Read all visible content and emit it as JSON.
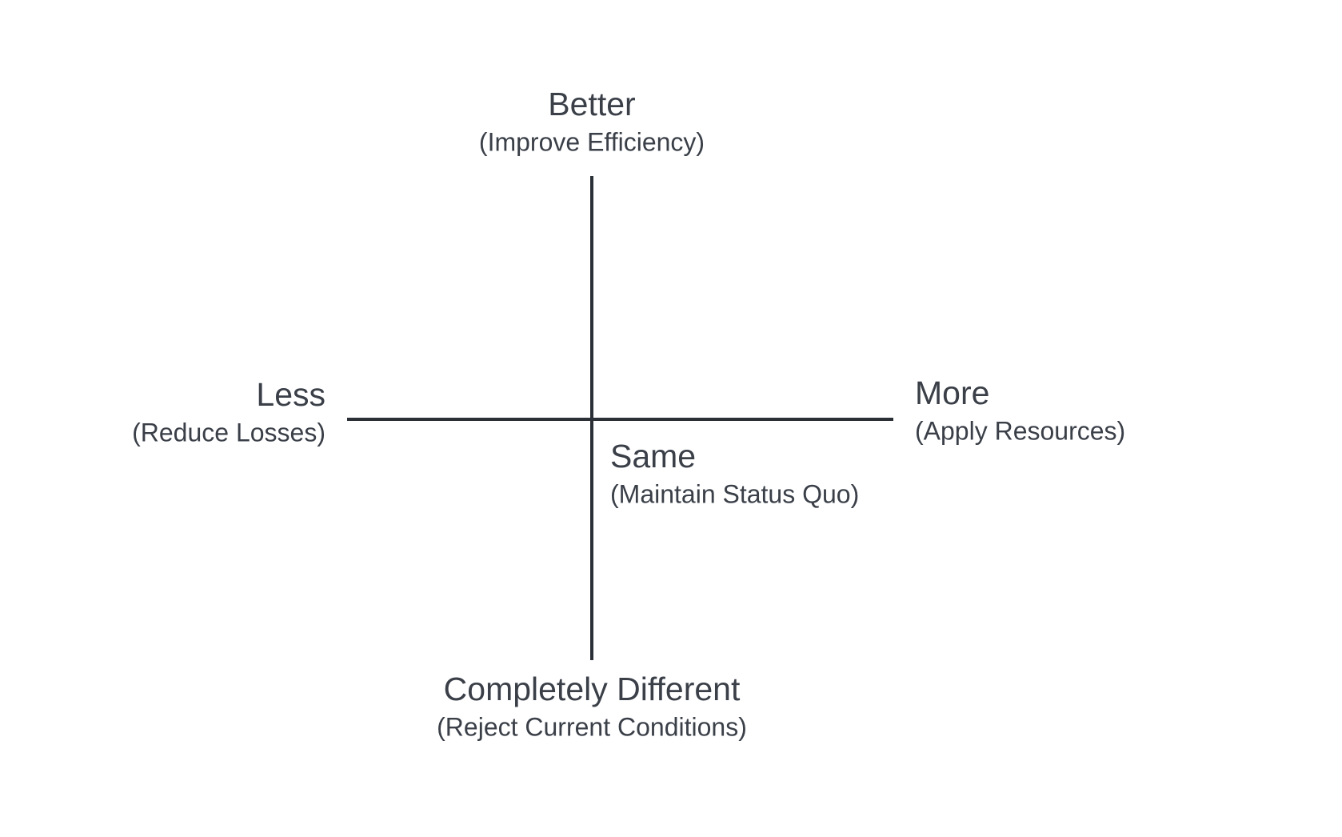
{
  "nodes": [
    {
      "label": "Better",
      "sublabel": "(Improve Efficiency)"
    },
    {
      "label": "Less",
      "sublabel": "(Reduce Losses)"
    },
    {
      "label": "More",
      "sublabel": "(Apply Resources)"
    },
    {
      "label": "Same",
      "sublabel": "(Maintain Status Quo)"
    },
    {
      "label": "Completely Different",
      "sublabel": "(Reject Current Conditions)"
    }
  ]
}
